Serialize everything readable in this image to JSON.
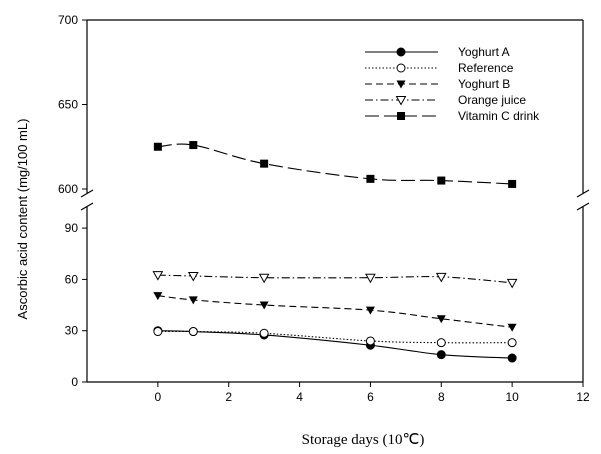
{
  "chart_data": {
    "type": "line",
    "title": "",
    "xlabel": "Storage days (10℃)",
    "ylabel": "Ascorbic acid content (mg/100 mL)",
    "x_ticks": [
      "0",
      "2",
      "4",
      "6",
      "8",
      "10",
      "12"
    ],
    "y_ticks_upper": [
      "600",
      "650",
      "700"
    ],
    "y_ticks_lower": [
      "0",
      "30",
      "60",
      "90"
    ],
    "xlim": [
      -2,
      12
    ],
    "ylim_lower": [
      0,
      100
    ],
    "ylim_upper": [
      600,
      700
    ],
    "y_axis_break": true,
    "legend_position": "top-right",
    "grid": false,
    "series": [
      {
        "name": "Yoghurt A",
        "x": [
          0,
          1,
          3,
          6,
          8,
          10
        ],
        "y": [
          30,
          29.5,
          27.5,
          21.5,
          16,
          14
        ],
        "marker": "filled-circle",
        "line": "solid"
      },
      {
        "name": "Reference",
        "x": [
          0,
          1,
          3,
          6,
          8,
          10
        ],
        "y": [
          29.5,
          29.5,
          28.5,
          24,
          23,
          23
        ],
        "marker": "open-circle",
        "line": "dotted"
      },
      {
        "name": "Yoghurt B",
        "x": [
          0,
          1,
          3,
          6,
          8,
          10
        ],
        "y": [
          50.5,
          48,
          45,
          42,
          37,
          32
        ],
        "marker": "filled-triangle-down",
        "line": "dashed"
      },
      {
        "name": "Orange juice",
        "x": [
          0,
          1,
          3,
          6,
          8,
          10
        ],
        "y": [
          62.5,
          62,
          61,
          61,
          61.5,
          58
        ],
        "marker": "open-triangle-down",
        "line": "dash-dot"
      },
      {
        "name": "Vitamin C drink",
        "x": [
          0,
          1,
          3,
          6,
          8,
          10
        ],
        "y": [
          625,
          626,
          615,
          606,
          605,
          603
        ],
        "marker": "filled-square",
        "line": "long-dash"
      }
    ]
  }
}
